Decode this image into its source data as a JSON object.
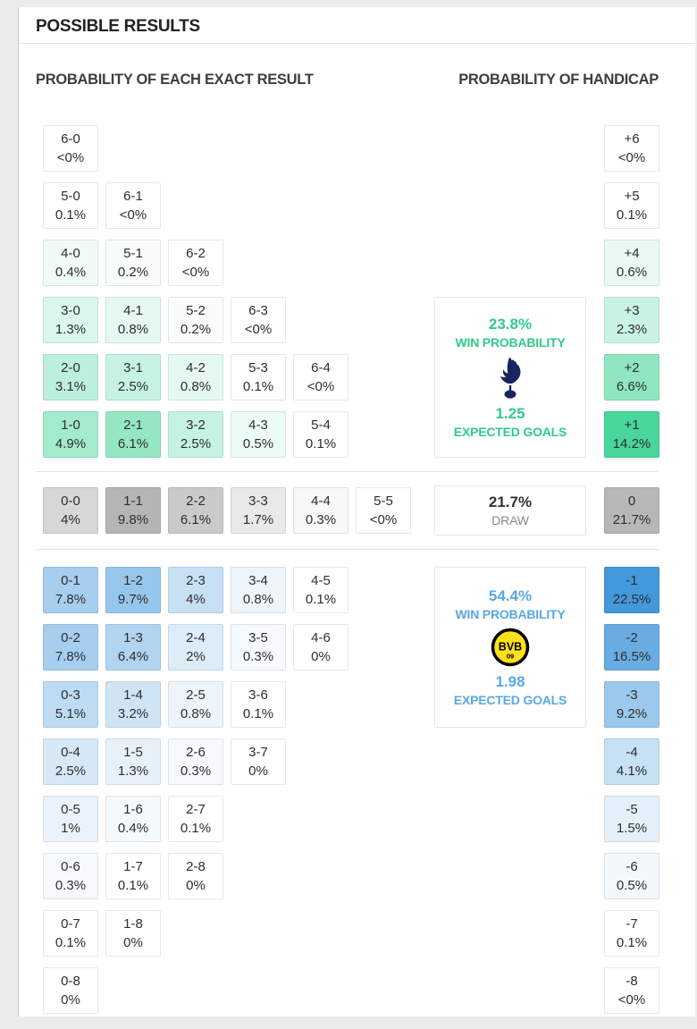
{
  "header": {
    "title": "POSSIBLE RESULTS"
  },
  "sections": {
    "exact_title": "PROBABILITY OF EACH EXACT RESULT",
    "handicap_title": "PROBABILITY OF HANDICAP"
  },
  "chart_data": {
    "type": "heatmap",
    "title": "POSSIBLE RESULTS",
    "left_panel_title": "PROBABILITY OF EACH EXACT RESULT",
    "right_panel_title": "PROBABILITY OF HANDICAP",
    "home": {
      "rows": [
        [
          {
            "score": "6-0",
            "pct": "<0%",
            "bg": "#ffffff"
          }
        ],
        [
          {
            "score": "5-0",
            "pct": "0.1%",
            "bg": "#ffffff"
          },
          {
            "score": "6-1",
            "pct": "<0%",
            "bg": "#ffffff"
          }
        ],
        [
          {
            "score": "4-0",
            "pct": "0.4%",
            "bg": "#f0fbf6"
          },
          {
            "score": "5-1",
            "pct": "0.2%",
            "bg": "#f8fdfb"
          },
          {
            "score": "6-2",
            "pct": "<0%",
            "bg": "#ffffff"
          }
        ],
        [
          {
            "score": "3-0",
            "pct": "1.3%",
            "bg": "#dbf7eb"
          },
          {
            "score": "4-1",
            "pct": "0.8%",
            "bg": "#e5f9f1"
          },
          {
            "score": "5-2",
            "pct": "0.2%",
            "bg": "#f8fdfb"
          },
          {
            "score": "6-3",
            "pct": "<0%",
            "bg": "#ffffff"
          }
        ],
        [
          {
            "score": "2-0",
            "pct": "3.1%",
            "bg": "#bdf0db"
          },
          {
            "score": "3-1",
            "pct": "2.5%",
            "bg": "#c6f2e0"
          },
          {
            "score": "4-2",
            "pct": "0.8%",
            "bg": "#e5f9f1"
          },
          {
            "score": "5-3",
            "pct": "0.1%",
            "bg": "#fdfefd"
          },
          {
            "score": "6-4",
            "pct": "<0%",
            "bg": "#ffffff"
          }
        ],
        [
          {
            "score": "1-0",
            "pct": "4.9%",
            "bg": "#a4ebcd"
          },
          {
            "score": "2-1",
            "pct": "6.1%",
            "bg": "#95e7c4"
          },
          {
            "score": "3-2",
            "pct": "2.5%",
            "bg": "#c6f2e0"
          },
          {
            "score": "4-3",
            "pct": "0.5%",
            "bg": "#edfbf5"
          },
          {
            "score": "5-4",
            "pct": "0.1%",
            "bg": "#fdfefd"
          }
        ]
      ]
    },
    "draw": {
      "rows": [
        [
          {
            "score": "0-0",
            "pct": "4%",
            "bg": "#d7d7d7"
          },
          {
            "score": "1-1",
            "pct": "9.8%",
            "bg": "#b5b5b5"
          },
          {
            "score": "2-2",
            "pct": "6.1%",
            "bg": "#cacaca"
          },
          {
            "score": "3-3",
            "pct": "1.7%",
            "bg": "#e9e9e9"
          },
          {
            "score": "4-4",
            "pct": "0.3%",
            "bg": "#f8f8f8"
          },
          {
            "score": "5-5",
            "pct": "<0%",
            "bg": "#ffffff"
          }
        ]
      ]
    },
    "away": {
      "rows": [
        [
          {
            "score": "0-1",
            "pct": "7.8%",
            "bg": "#a6ceee"
          },
          {
            "score": "1-2",
            "pct": "9.7%",
            "bg": "#97c6ec"
          },
          {
            "score": "2-3",
            "pct": "4%",
            "bg": "#c7e0f4"
          },
          {
            "score": "3-4",
            "pct": "0.8%",
            "bg": "#edf5fb"
          },
          {
            "score": "4-5",
            "pct": "0.1%",
            "bg": "#ffffff"
          }
        ],
        [
          {
            "score": "0-2",
            "pct": "7.8%",
            "bg": "#a6ceee"
          },
          {
            "score": "1-3",
            "pct": "6.4%",
            "bg": "#b1d4f0"
          },
          {
            "score": "2-4",
            "pct": "2%",
            "bg": "#ddecf9"
          },
          {
            "score": "3-5",
            "pct": "0.3%",
            "bg": "#f6fafd"
          },
          {
            "score": "4-6",
            "pct": "0%",
            "bg": "#ffffff"
          }
        ],
        [
          {
            "score": "0-3",
            "pct": "5.1%",
            "bg": "#bddbf3"
          },
          {
            "score": "1-4",
            "pct": "3.2%",
            "bg": "#cfe5f6"
          },
          {
            "score": "2-5",
            "pct": "0.8%",
            "bg": "#edf5fb"
          },
          {
            "score": "3-6",
            "pct": "0.1%",
            "bg": "#ffffff"
          }
        ],
        [
          {
            "score": "0-4",
            "pct": "2.5%",
            "bg": "#d7e9f7"
          },
          {
            "score": "1-5",
            "pct": "1.3%",
            "bg": "#e6f1fa"
          },
          {
            "score": "2-6",
            "pct": "0.3%",
            "bg": "#f6fafd"
          },
          {
            "score": "3-7",
            "pct": "0%",
            "bg": "#ffffff"
          }
        ],
        [
          {
            "score": "0-5",
            "pct": "1%",
            "bg": "#eaf3fb"
          },
          {
            "score": "1-6",
            "pct": "0.4%",
            "bg": "#f4f9fd"
          },
          {
            "score": "2-7",
            "pct": "0.1%",
            "bg": "#ffffff"
          }
        ],
        [
          {
            "score": "0-6",
            "pct": "0.3%",
            "bg": "#f6fafd"
          },
          {
            "score": "1-7",
            "pct": "0.1%",
            "bg": "#ffffff"
          },
          {
            "score": "2-8",
            "pct": "0%",
            "bg": "#ffffff"
          }
        ],
        [
          {
            "score": "0-7",
            "pct": "0.1%",
            "bg": "#ffffff"
          },
          {
            "score": "1-8",
            "pct": "0%",
            "bg": "#ffffff"
          }
        ],
        [
          {
            "score": "0-8",
            "pct": "0%",
            "bg": "#ffffff"
          }
        ]
      ]
    },
    "handicap": {
      "home": [
        {
          "line": "+6",
          "pct": "<0%",
          "bg": "#ffffff"
        },
        {
          "line": "+5",
          "pct": "0.1%",
          "bg": "#fdfefd"
        },
        {
          "line": "+4",
          "pct": "0.6%",
          "bg": "#eafaf3"
        },
        {
          "line": "+3",
          "pct": "2.3%",
          "bg": "#caf3e2"
        },
        {
          "line": "+2",
          "pct": "6.6%",
          "bg": "#8fe6c1"
        },
        {
          "line": "+1",
          "pct": "14.2%",
          "bg": "#49d69a"
        }
      ],
      "draw": [
        {
          "line": "0",
          "pct": "21.7%",
          "bg": "#b7b7b7"
        }
      ],
      "away": [
        {
          "line": "-1",
          "pct": "22.5%",
          "bg": "#4498dc"
        },
        {
          "line": "-2",
          "pct": "16.5%",
          "bg": "#69ace3"
        },
        {
          "line": "-3",
          "pct": "9.2%",
          "bg": "#9bc8ec"
        },
        {
          "line": "-4",
          "pct": "4.1%",
          "bg": "#c6e0f4"
        },
        {
          "line": "-5",
          "pct": "1.5%",
          "bg": "#e3f0fa"
        },
        {
          "line": "-6",
          "pct": "0.5%",
          "bg": "#f2f8fc"
        },
        {
          "line": "-7",
          "pct": "0.1%",
          "bg": "#ffffff"
        },
        {
          "line": "-8",
          "pct": "<0%",
          "bg": "#ffffff"
        }
      ]
    },
    "summaries": {
      "home": {
        "probability": "23.8%",
        "win_label": "WIN PROBABILITY",
        "expected_goals": "1.25",
        "eg_label": "EXPECTED GOALS",
        "team": "Tottenham Hotspur",
        "accent": "#2fcb8a"
      },
      "draw": {
        "probability": "21.7%",
        "label": "DRAW"
      },
      "away": {
        "probability": "54.4%",
        "win_label": "WIN PROBABILITY",
        "expected_goals": "1.98",
        "eg_label": "EXPECTED GOALS",
        "team": "Borussia Dortmund",
        "accent": "#57a8e4"
      }
    },
    "logos": {
      "bvb_text": "BVB",
      "bvb_year": "09"
    }
  }
}
